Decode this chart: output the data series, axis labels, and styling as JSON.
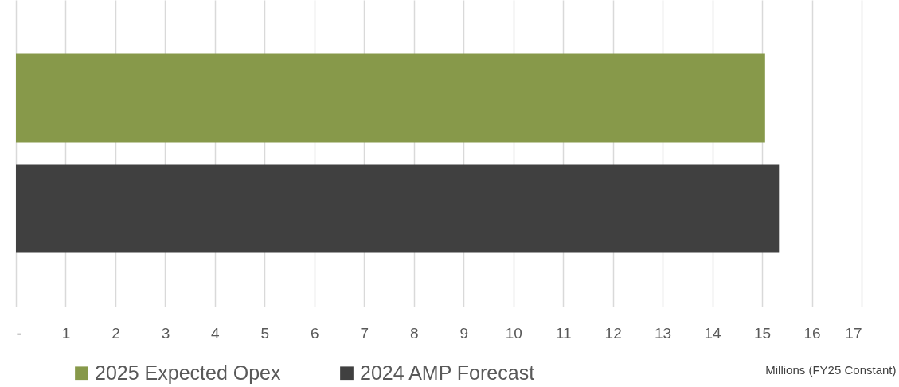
{
  "chart_data": {
    "type": "bar",
    "orientation": "horizontal",
    "categories": [
      null
    ],
    "series": [
      {
        "name": "2025 Expected Opex",
        "color": "#87994a",
        "values": [
          15.06
        ]
      },
      {
        "name": "2024 AMP Forecast",
        "color": "#404040",
        "values": [
          15.34
        ]
      }
    ],
    "xlim": [
      0,
      17
    ],
    "xticks": [
      {
        "value": 0,
        "label": "-"
      },
      1,
      2,
      3,
      4,
      5,
      6,
      7,
      8,
      9,
      10,
      11,
      12,
      13,
      14,
      15,
      16,
      17
    ],
    "xlabel": "Millions (FY25 Constant)",
    "grid": "x",
    "legend": "bottom",
    "tick_labels": "x"
  }
}
